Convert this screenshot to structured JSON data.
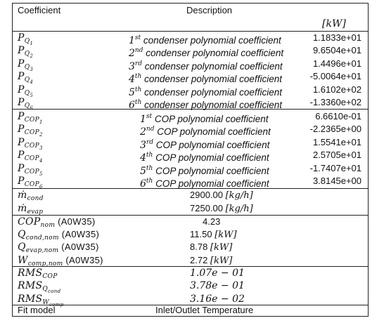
{
  "header": {
    "col_coefficient": "Coefficient",
    "col_description": "Description",
    "unit": "[kW]"
  },
  "rows_q": [
    {
      "sym": "P",
      "sub": "Q",
      "subn": "1",
      "ord_n": "1",
      "ord_s": "st",
      "desc": "condenser polynomial coefficient",
      "value": "1.1833e+01"
    },
    {
      "sym": "P",
      "sub": "Q",
      "subn": "2",
      "ord_n": "2",
      "ord_s": "nd",
      "desc": "condenser polynomial coefficient",
      "value": "9.6504e+01"
    },
    {
      "sym": "P",
      "sub": "Q",
      "subn": "3",
      "ord_n": "3",
      "ord_s": "rd",
      "desc": "condenser polynomial coefficient",
      "value": "1.4496e+01"
    },
    {
      "sym": "P",
      "sub": "Q",
      "subn": "4",
      "ord_n": "4",
      "ord_s": "th",
      "desc": "condenser polynomial coefficient",
      "value": "-5.0064e+01"
    },
    {
      "sym": "P",
      "sub": "Q",
      "subn": "5",
      "ord_n": "5",
      "ord_s": "th",
      "desc": "condenser polynomial coefficient",
      "value": "1.6102e+02"
    },
    {
      "sym": "P",
      "sub": "Q",
      "subn": "6",
      "ord_n": "6",
      "ord_s": "th",
      "desc": "condenser polynomial coefficient",
      "value": "-1.3360e+02"
    }
  ],
  "rows_cop": [
    {
      "sym": "P",
      "sub": "COP",
      "subn": "1",
      "ord_n": "1",
      "ord_s": "st",
      "desc": "COP polynomial coefficient",
      "value": "6.6610e-01"
    },
    {
      "sym": "P",
      "sub": "COP",
      "subn": "2",
      "ord_n": "2",
      "ord_s": "nd",
      "desc": "COP polynomial coefficient",
      "value": "-2.2365e+00"
    },
    {
      "sym": "P",
      "sub": "COP",
      "subn": "3",
      "ord_n": "3",
      "ord_s": "rd",
      "desc": "COP polynomial coefficient",
      "value": "1.5541e+01"
    },
    {
      "sym": "P",
      "sub": "COP",
      "subn": "4",
      "ord_n": "4",
      "ord_s": "th",
      "desc": "COP polynomial coefficient",
      "value": "2.5705e+01"
    },
    {
      "sym": "P",
      "sub": "COP",
      "subn": "5",
      "ord_n": "5",
      "ord_s": "th",
      "desc": "COP polynomial coefficient",
      "value": "-1.7407e+01"
    },
    {
      "sym": "P",
      "sub": "COP",
      "subn": "6",
      "ord_n": "6",
      "ord_s": "th",
      "desc": "COP polynomial coefficient",
      "value": "3.8145e+00"
    }
  ],
  "flows": [
    {
      "sym": "ṁ",
      "sub": "cond",
      "value": "2900.00",
      "unit": "[kg/h]"
    },
    {
      "sym": "ṁ",
      "sub": "evap",
      "value": "7250.00",
      "unit": "[kg/h]"
    }
  ],
  "nominal": [
    {
      "sym": "COP",
      "sub": "nom",
      "cond": "(A0W35)",
      "value": "4.23",
      "unit": ""
    },
    {
      "sym": "Q",
      "sub": "cond,nom",
      "cond": "(A0W35)",
      "value": "11.50",
      "unit": "[kW]"
    },
    {
      "sym": "Q",
      "sub": "evap,nom",
      "cond": "(A0W35)",
      "value": "8.78",
      "unit": "[kW]"
    },
    {
      "sym": "W",
      "sub": "comp,nom",
      "cond": "(A0W35)",
      "value": "2.72",
      "unit": "[kW]"
    }
  ],
  "rms": [
    {
      "sym": "RMS",
      "sub": "COP",
      "value": "1.07e − 01"
    },
    {
      "sym": "RMS",
      "sub": "Q",
      "subsub": "cond",
      "value": "3.78e − 01"
    },
    {
      "sym": "RMS",
      "sub": "W",
      "subsub": "comp",
      "value": "3.16e − 02"
    }
  ],
  "fit": {
    "label": "Fit model",
    "value": "Inlet/Outlet Temperature"
  }
}
